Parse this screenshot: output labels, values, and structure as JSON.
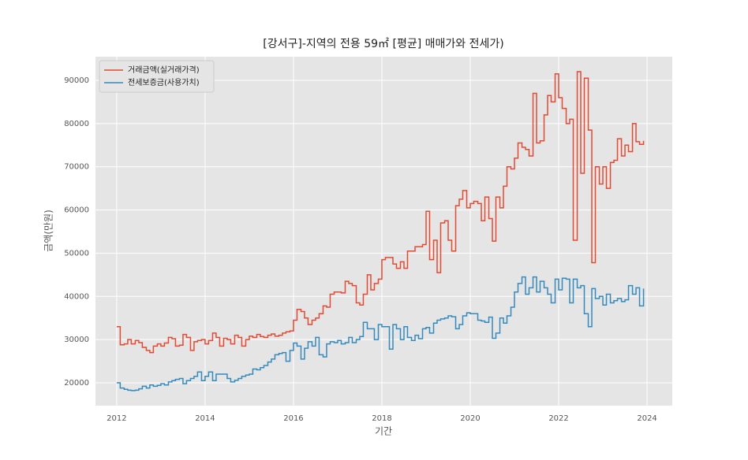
{
  "chart_data": {
    "type": "line",
    "drawstyle": "steps",
    "title": "[강서구]-지역의 전용 59㎡ [평균] 매매가와 전세가)",
    "xlabel": "기간",
    "ylabel": "금액(만원)",
    "x": [
      2012,
      2012.08,
      2012.17,
      2012.25,
      2012.33,
      2012.42,
      2012.5,
      2012.58,
      2012.67,
      2012.75,
      2012.83,
      2012.92,
      2013,
      2013.08,
      2013.17,
      2013.25,
      2013.33,
      2013.42,
      2013.5,
      2013.58,
      2013.67,
      2013.75,
      2013.83,
      2013.92,
      2014,
      2014.08,
      2014.17,
      2014.25,
      2014.33,
      2014.42,
      2014.5,
      2014.58,
      2014.67,
      2014.75,
      2014.83,
      2014.92,
      2015,
      2015.08,
      2015.17,
      2015.25,
      2015.33,
      2015.42,
      2015.5,
      2015.58,
      2015.67,
      2015.75,
      2015.83,
      2015.92,
      2016,
      2016.08,
      2016.17,
      2016.25,
      2016.33,
      2016.42,
      2016.5,
      2016.58,
      2016.67,
      2016.75,
      2016.83,
      2016.92,
      2017,
      2017.08,
      2017.17,
      2017.25,
      2017.33,
      2017.42,
      2017.5,
      2017.58,
      2017.67,
      2017.75,
      2017.83,
      2017.92,
      2018,
      2018.08,
      2018.17,
      2018.25,
      2018.33,
      2018.42,
      2018.5,
      2018.58,
      2018.67,
      2018.75,
      2018.83,
      2018.92,
      2019,
      2019.08,
      2019.17,
      2019.25,
      2019.33,
      2019.42,
      2019.5,
      2019.58,
      2019.67,
      2019.75,
      2019.83,
      2019.92,
      2020,
      2020.08,
      2020.17,
      2020.25,
      2020.33,
      2020.42,
      2020.5,
      2020.58,
      2020.67,
      2020.75,
      2020.83,
      2020.92,
      2021,
      2021.08,
      2021.17,
      2021.25,
      2021.33,
      2021.42,
      2021.5,
      2021.58,
      2021.67,
      2021.75,
      2021.83,
      2021.92,
      2022,
      2022.08,
      2022.17,
      2022.25,
      2022.33,
      2022.42,
      2022.5,
      2022.58,
      2022.67,
      2022.75,
      2022.83,
      2022.92,
      2023,
      2023.08,
      2023.17,
      2023.25,
      2023.33,
      2023.42,
      2023.5,
      2023.58,
      2023.67,
      2023.75,
      2023.83,
      2023.92
    ],
    "series": [
      {
        "name": "거래금액(실거래가격)",
        "color": "#E24A33",
        "values": [
          33000,
          28800,
          29000,
          30000,
          29000,
          29800,
          29300,
          28200,
          27500,
          27000,
          28500,
          29000,
          28500,
          29200,
          30500,
          30200,
          28500,
          28700,
          31200,
          30500,
          27500,
          29500,
          29800,
          30000,
          29000,
          29800,
          31500,
          30500,
          28500,
          30300,
          30000,
          29000,
          31000,
          30500,
          28500,
          30000,
          30800,
          30500,
          31200,
          30700,
          30500,
          31000,
          31300,
          30800,
          31000,
          31500,
          31800,
          32000,
          34500,
          37000,
          36500,
          35000,
          33500,
          34500,
          35000,
          36000,
          37800,
          37500,
          40500,
          41000,
          41000,
          40800,
          43500,
          43000,
          42500,
          38500,
          38000,
          40500,
          45000,
          41500,
          43000,
          44000,
          48500,
          49000,
          49000,
          47500,
          46500,
          48000,
          46500,
          50500,
          50500,
          51500,
          51500,
          52000,
          59700,
          48500,
          53000,
          45500,
          57000,
          57500,
          53000,
          50500,
          61000,
          62500,
          64500,
          60500,
          61500,
          62000,
          61500,
          57500,
          63000,
          58000,
          52800,
          63000,
          60500,
          65500,
          70000,
          69500,
          72000,
          75500,
          74500,
          74000,
          72500,
          87000,
          75500,
          76000,
          82000,
          86500,
          85000,
          91500,
          86000,
          83500,
          80000,
          81000,
          53000,
          92000,
          68500,
          90500,
          78500,
          47800,
          70000,
          66000,
          70000,
          65000,
          71000,
          71500,
          76500,
          72500,
          75000,
          73500,
          80000,
          75800,
          75200,
          76000
        ]
      },
      {
        "name": "전세보증금(사용가치)",
        "color": "#348ABD",
        "values": [
          20000,
          18800,
          18500,
          18300,
          18200,
          18300,
          18600,
          19200,
          18800,
          19500,
          19200,
          19400,
          19800,
          19500,
          20200,
          20500,
          20800,
          21000,
          19800,
          20500,
          21000,
          21500,
          22500,
          20500,
          21500,
          22500,
          20500,
          22000,
          22000,
          22000,
          21000,
          20200,
          20600,
          21000,
          21500,
          21800,
          22000,
          23200,
          23000,
          23500,
          24000,
          24800,
          25500,
          26500,
          26800,
          27000,
          25000,
          27500,
          29200,
          28500,
          25500,
          28000,
          29500,
          28500,
          30500,
          26500,
          26000,
          29000,
          29500,
          29300,
          29800,
          29000,
          29300,
          30500,
          29300,
          30000,
          30700,
          34000,
          32500,
          32500,
          30000,
          33500,
          33000,
          33000,
          27800,
          33500,
          32500,
          30000,
          33000,
          30500,
          29800,
          31000,
          30200,
          32500,
          32800,
          31500,
          33800,
          34500,
          34800,
          35000,
          35500,
          35300,
          32500,
          33500,
          35500,
          36200,
          36000,
          36000,
          34500,
          34300,
          34000,
          35200,
          30300,
          31500,
          35000,
          33800,
          35500,
          37500,
          41000,
          43000,
          44500,
          40500,
          42000,
          44500,
          41000,
          43500,
          42000,
          40500,
          38500,
          44000,
          41500,
          44200,
          44000,
          38500,
          44000,
          42000,
          42500,
          36000,
          33000,
          41800,
          39500,
          40000,
          38000,
          40500,
          38500,
          39000,
          39500,
          38800,
          39200,
          42500,
          40500,
          42000,
          37800,
          41800
        ]
      }
    ],
    "xlim": [
      2011.52,
      2024.57
    ],
    "ylim": [
      14714,
      95470
    ],
    "xticks": [
      2012,
      2014,
      2016,
      2018,
      2020,
      2022,
      2024
    ],
    "yticks": [
      20000,
      30000,
      40000,
      50000,
      60000,
      70000,
      80000,
      90000
    ],
    "grid": true,
    "legend": "upper left"
  }
}
